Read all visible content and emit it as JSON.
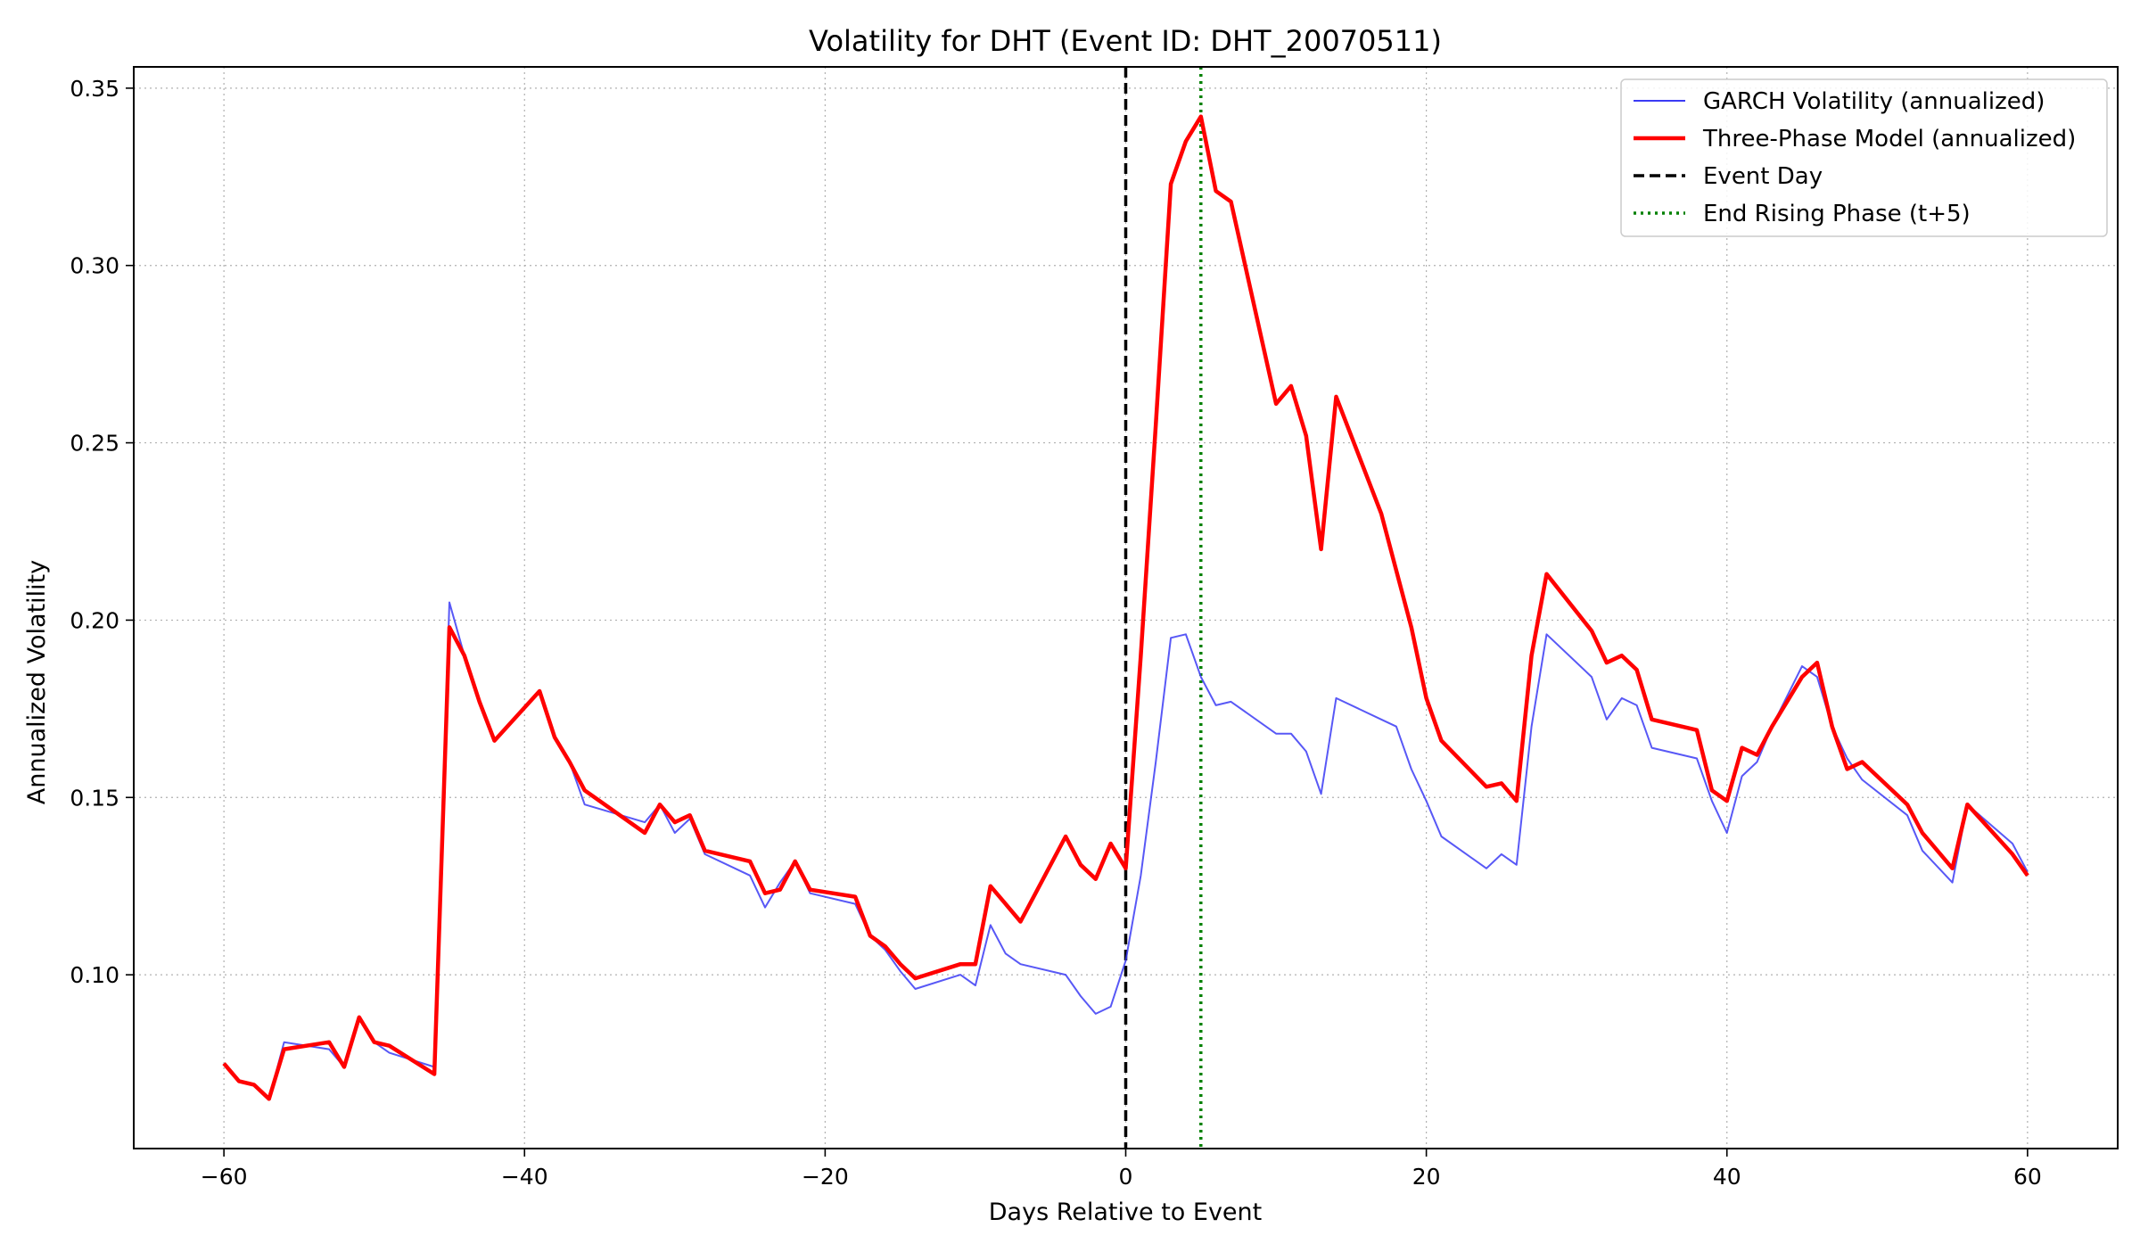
{
  "chart_data": {
    "type": "line",
    "title": "Volatility for DHT (Event ID: DHT_20070511)",
    "xlabel": "Days Relative to Event",
    "ylabel": "Annualized Volatility",
    "xlim": [
      -66,
      66
    ],
    "ylim": [
      0.051,
      0.356
    ],
    "x_ticks": [
      -60,
      -40,
      -20,
      0,
      20,
      40,
      60
    ],
    "x_tick_labels": [
      "−60",
      "−40",
      "−20",
      "0",
      "20",
      "40",
      "60"
    ],
    "y_ticks": [
      0.1,
      0.15,
      0.2,
      0.25,
      0.3,
      0.35
    ],
    "y_tick_labels": [
      "0.10",
      "0.15",
      "0.20",
      "0.25",
      "0.30",
      "0.35"
    ],
    "grid": true,
    "legend_position": "top-right",
    "series": [
      {
        "name": "GARCH Volatility (annualized)",
        "color": "#3b3bf5",
        "style": "solid-thin",
        "points": [
          [
            -60,
            0.075
          ],
          [
            -59,
            0.07
          ],
          [
            -58,
            0.069
          ],
          [
            -57,
            0.065
          ],
          [
            -56,
            0.081
          ],
          [
            -53,
            0.079
          ],
          [
            -52,
            0.074
          ],
          [
            -51,
            0.088
          ],
          [
            -50,
            0.081
          ],
          [
            -49,
            0.078
          ],
          [
            -46,
            0.074
          ],
          [
            -45,
            0.205
          ],
          [
            -44,
            0.19
          ],
          [
            -43,
            0.177
          ],
          [
            -42,
            0.166
          ],
          [
            -39,
            0.18
          ],
          [
            -38,
            0.167
          ],
          [
            -37,
            0.16
          ],
          [
            -36,
            0.148
          ],
          [
            -32,
            0.143
          ],
          [
            -31,
            0.148
          ],
          [
            -30,
            0.14
          ],
          [
            -29,
            0.144
          ],
          [
            -28,
            0.134
          ],
          [
            -25,
            0.128
          ],
          [
            -24,
            0.119
          ],
          [
            -23,
            0.126
          ],
          [
            -22,
            0.132
          ],
          [
            -21,
            0.123
          ],
          [
            -18,
            0.12
          ],
          [
            -17,
            0.111
          ],
          [
            -16,
            0.107
          ],
          [
            -15,
            0.101
          ],
          [
            -14,
            0.096
          ],
          [
            -11,
            0.1
          ],
          [
            -10,
            0.097
          ],
          [
            -9,
            0.114
          ],
          [
            -8,
            0.106
          ],
          [
            -7,
            0.103
          ],
          [
            -4,
            0.1
          ],
          [
            -3,
            0.094
          ],
          [
            -2,
            0.089
          ],
          [
            -1,
            0.091
          ],
          [
            0,
            0.104
          ],
          [
            1,
            0.128
          ],
          [
            2,
            0.16
          ],
          [
            3,
            0.195
          ],
          [
            4,
            0.196
          ],
          [
            5,
            0.184
          ],
          [
            6,
            0.176
          ],
          [
            7,
            0.177
          ],
          [
            10,
            0.168
          ],
          [
            11,
            0.168
          ],
          [
            12,
            0.163
          ],
          [
            13,
            0.151
          ],
          [
            14,
            0.178
          ],
          [
            17,
            0.172
          ],
          [
            18,
            0.17
          ],
          [
            19,
            0.158
          ],
          [
            20,
            0.149
          ],
          [
            21,
            0.139
          ],
          [
            24,
            0.13
          ],
          [
            25,
            0.134
          ],
          [
            26,
            0.131
          ],
          [
            27,
            0.17
          ],
          [
            28,
            0.196
          ],
          [
            31,
            0.184
          ],
          [
            32,
            0.172
          ],
          [
            33,
            0.178
          ],
          [
            34,
            0.176
          ],
          [
            35,
            0.164
          ],
          [
            38,
            0.161
          ],
          [
            39,
            0.149
          ],
          [
            40,
            0.14
          ],
          [
            41,
            0.156
          ],
          [
            42,
            0.16
          ],
          [
            43,
            0.17
          ],
          [
            45,
            0.187
          ],
          [
            46,
            0.184
          ],
          [
            47,
            0.17
          ],
          [
            48,
            0.161
          ],
          [
            49,
            0.155
          ],
          [
            52,
            0.145
          ],
          [
            53,
            0.135
          ],
          [
            55,
            0.126
          ],
          [
            56,
            0.148
          ],
          [
            59,
            0.137
          ],
          [
            60,
            0.129
          ]
        ]
      },
      {
        "name": "Three-Phase Model (annualized)",
        "color": "#ff0000",
        "style": "solid-thick",
        "points": [
          [
            -60,
            0.075
          ],
          [
            -59,
            0.07
          ],
          [
            -58,
            0.069
          ],
          [
            -57,
            0.065
          ],
          [
            -56,
            0.079
          ],
          [
            -53,
            0.081
          ],
          [
            -52,
            0.074
          ],
          [
            -51,
            0.088
          ],
          [
            -50,
            0.081
          ],
          [
            -49,
            0.08
          ],
          [
            -46,
            0.072
          ],
          [
            -45,
            0.198
          ],
          [
            -44,
            0.19
          ],
          [
            -43,
            0.177
          ],
          [
            -42,
            0.166
          ],
          [
            -39,
            0.18
          ],
          [
            -38,
            0.167
          ],
          [
            -37,
            0.16
          ],
          [
            -36,
            0.152
          ],
          [
            -32,
            0.14
          ],
          [
            -31,
            0.148
          ],
          [
            -30,
            0.143
          ],
          [
            -29,
            0.145
          ],
          [
            -28,
            0.135
          ],
          [
            -25,
            0.132
          ],
          [
            -24,
            0.123
          ],
          [
            -23,
            0.124
          ],
          [
            -22,
            0.132
          ],
          [
            -21,
            0.124
          ],
          [
            -18,
            0.122
          ],
          [
            -17,
            0.111
          ],
          [
            -16,
            0.108
          ],
          [
            -15,
            0.103
          ],
          [
            -14,
            0.099
          ],
          [
            -11,
            0.103
          ],
          [
            -10,
            0.103
          ],
          [
            -9,
            0.125
          ],
          [
            -8,
            0.12
          ],
          [
            -7,
            0.115
          ],
          [
            -4,
            0.139
          ],
          [
            -3,
            0.131
          ],
          [
            -2,
            0.127
          ],
          [
            -1,
            0.137
          ],
          [
            0,
            0.13
          ],
          [
            1,
            0.19
          ],
          [
            2,
            0.255
          ],
          [
            3,
            0.323
          ],
          [
            4,
            0.335
          ],
          [
            5,
            0.342
          ],
          [
            6,
            0.321
          ],
          [
            7,
            0.318
          ],
          [
            10,
            0.261
          ],
          [
            11,
            0.266
          ],
          [
            12,
            0.252
          ],
          [
            13,
            0.22
          ],
          [
            14,
            0.263
          ],
          [
            17,
            0.23
          ],
          [
            18,
            0.214
          ],
          [
            19,
            0.198
          ],
          [
            20,
            0.178
          ],
          [
            21,
            0.166
          ],
          [
            24,
            0.153
          ],
          [
            25,
            0.154
          ],
          [
            26,
            0.149
          ],
          [
            27,
            0.19
          ],
          [
            28,
            0.213
          ],
          [
            31,
            0.197
          ],
          [
            32,
            0.188
          ],
          [
            33,
            0.19
          ],
          [
            34,
            0.186
          ],
          [
            35,
            0.172
          ],
          [
            38,
            0.169
          ],
          [
            39,
            0.152
          ],
          [
            40,
            0.149
          ],
          [
            41,
            0.164
          ],
          [
            42,
            0.162
          ],
          [
            43,
            0.17
          ],
          [
            45,
            0.184
          ],
          [
            46,
            0.188
          ],
          [
            47,
            0.17
          ],
          [
            48,
            0.158
          ],
          [
            49,
            0.16
          ],
          [
            52,
            0.148
          ],
          [
            53,
            0.14
          ],
          [
            55,
            0.13
          ],
          [
            56,
            0.148
          ],
          [
            59,
            0.134
          ],
          [
            60,
            0.128
          ]
        ]
      }
    ],
    "vlines": [
      {
        "name": "Event Day",
        "x": 0,
        "color": "#000000",
        "style": "dashed"
      },
      {
        "name": "End Rising Phase (t+5)",
        "x": 5,
        "color": "#008000",
        "style": "dotted"
      }
    ]
  }
}
